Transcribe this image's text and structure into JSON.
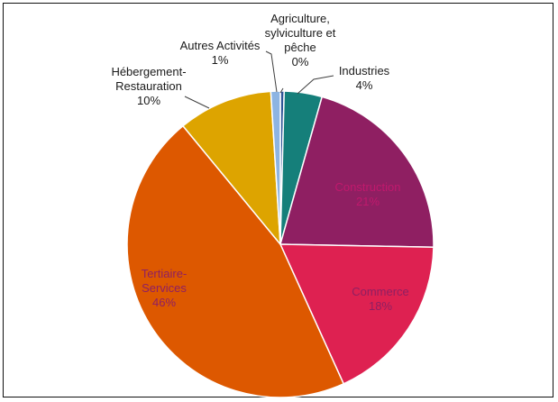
{
  "chart_data": {
    "type": "pie",
    "title": "",
    "slices": [
      {
        "label": "Agriculture,\nsylviculture et\npêche",
        "value": 0.4,
        "display": "0%",
        "color": "#2F5597",
        "label_color": "#1a1a1a",
        "label_placement": "outside"
      },
      {
        "label": "Industries",
        "value": 4,
        "display": "4%",
        "color": "#157F7A",
        "label_color": "#1a1a1a",
        "label_placement": "outside"
      },
      {
        "label": "Construction",
        "value": 21,
        "display": "21%",
        "color": "#8F1F62",
        "label_color": "#C0196D",
        "label_placement": "inside"
      },
      {
        "label": "Commerce",
        "value": 18,
        "display": "18%",
        "color": "#DE2151",
        "label_color": "#8F1F62",
        "label_placement": "inside"
      },
      {
        "label": "Tertiaire-\nServices",
        "value": 46,
        "display": "46%",
        "color": "#DD5800",
        "label_color": "#8F1F62",
        "label_placement": "inside"
      },
      {
        "label": "Hébergement-\nRestauration",
        "value": 10,
        "display": "10%",
        "color": "#DDA400",
        "label_color": "#1a1a1a",
        "label_placement": "outside"
      },
      {
        "label": "Autres Activités",
        "value": 1,
        "display": "1%",
        "color": "#8DB4E2",
        "label_color": "#1a1a1a",
        "label_placement": "outside"
      }
    ]
  }
}
